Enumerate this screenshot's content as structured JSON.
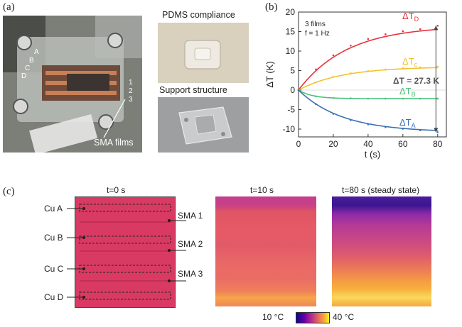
{
  "panels": {
    "a": {
      "label": "(a)",
      "pdms_caption": "PDMS compliance",
      "support_caption": "Support structure",
      "sma_caption": "SMA films",
      "electrode_letters": [
        "A",
        "B",
        "C",
        "D"
      ],
      "film_numbers": [
        "1",
        "2",
        "3"
      ]
    },
    "b": {
      "label": "(b)"
    },
    "c": {
      "label": "(c)",
      "frames": [
        {
          "title": "t=0 s",
          "note": ""
        },
        {
          "title": "t=10 s",
          "note": ""
        },
        {
          "title": "t=80 s",
          "note": "(steady state)"
        }
      ],
      "cu_labels": [
        "Cu A",
        "Cu B",
        "Cu C",
        "Cu D"
      ],
      "sma_labels": [
        "SMA 1",
        "SMA 2",
        "SMA 3"
      ],
      "colorbar": {
        "min_label": "10 °C",
        "max_label": "40 °C"
      }
    }
  },
  "chart_data": {
    "type": "line",
    "xlabel": "t (s)",
    "ylabel": "ΔT (K)",
    "xlim": [
      0,
      85
    ],
    "ylim": [
      -12,
      20
    ],
    "xticks": [
      0,
      20,
      40,
      60,
      80
    ],
    "yticks": [
      -10,
      -5,
      0,
      5,
      10,
      15,
      20
    ],
    "annotation_lines": [
      "3 films",
      "f = 1 Hz"
    ],
    "span_annotation": "ΔT = 27.3 K",
    "series": [
      {
        "name": "ΔT_D",
        "color": "#e8323c",
        "final": 16.5,
        "tau": 28,
        "x": [
          0,
          10,
          20,
          30,
          40,
          50,
          60,
          70,
          80
        ],
        "y": [
          0,
          5.3,
          8.9,
          11.4,
          13.1,
          14.3,
          15.1,
          15.6,
          16.5
        ]
      },
      {
        "name": "ΔT_c",
        "color": "#f2c230",
        "final": 6.0,
        "tau": 25,
        "x": [
          0,
          10,
          20,
          30,
          40,
          50,
          60,
          70,
          80
        ],
        "y": [
          0,
          2.0,
          3.4,
          4.3,
          4.9,
          5.3,
          5.6,
          5.8,
          6.0
        ]
      },
      {
        "name": "ΔT_B",
        "color": "#4dc07a",
        "final": -2.2,
        "tau": 8,
        "x": [
          0,
          10,
          20,
          30,
          40,
          50,
          60,
          70,
          80
        ],
        "y": [
          0,
          -1.6,
          -2.0,
          -2.1,
          -2.2,
          -2.2,
          -2.2,
          -2.2,
          -2.2
        ]
      },
      {
        "name": "ΔT_A",
        "color": "#3a6fb5",
        "final": -10.8,
        "tau": 25,
        "x": [
          0,
          10,
          20,
          30,
          40,
          50,
          60,
          70,
          80
        ],
        "y": [
          0,
          -3.6,
          -6.1,
          -7.7,
          -8.8,
          -9.5,
          -9.9,
          -10.3,
          -10.8
        ]
      }
    ],
    "series_label_text": [
      {
        "main": "ΔT",
        "sub": "D"
      },
      {
        "main": "ΔT",
        "sub": "c"
      },
      {
        "main": "ΔT",
        "sub": "B"
      },
      {
        "main": "ΔT",
        "sub": "A"
      }
    ]
  }
}
